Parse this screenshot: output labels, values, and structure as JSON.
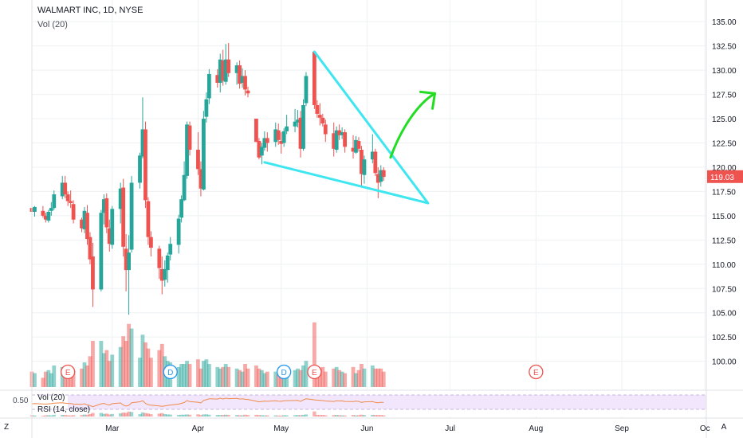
{
  "header": {
    "title": "WALMART INC, 1D, NYSE",
    "volume_label": "Vol (20)"
  },
  "indicator_panel": {
    "vol_label": "Vol (20)",
    "rsi_label": "RSI (14, close)",
    "level_label": "0.50"
  },
  "corner_buttons": {
    "left": "Z",
    "right": "A"
  },
  "price_badge": {
    "value": "119.03",
    "color": "#ef5350"
  },
  "colors": {
    "up": "#26a69a",
    "down": "#ef5350",
    "wedge": "#3ee6f0",
    "arrow": "#22dd22",
    "grid": "#eef0f3"
  },
  "chart_data": {
    "type": "candlestick",
    "title": "WALMART INC, 1D, NYSE",
    "y_ticks": [
      "135.00",
      "132.50",
      "130.00",
      "127.50",
      "125.00",
      "122.50",
      "120.00",
      "117.50",
      "115.00",
      "112.50",
      "110.00",
      "107.50",
      "105.00",
      "102.50",
      "100.00"
    ],
    "ylim": [
      98.0,
      136.0
    ],
    "x_ticks": [
      "Mar",
      "Apr",
      "May",
      "Jun",
      "Jul",
      "Aug",
      "Sep",
      "Oc"
    ],
    "x_tick_days": [
      29,
      60,
      90,
      121,
      151,
      182,
      213,
      243
    ],
    "xlim": [
      0,
      243.5
    ],
    "ohlc": [
      [
        0,
        115.8,
        116.0,
        115.0,
        115.4
      ],
      [
        1,
        115.4,
        116.0,
        114.9,
        115.9
      ],
      [
        4,
        115.5,
        116.0,
        114.8,
        115.0
      ],
      [
        5,
        115.0,
        115.3,
        114.3,
        114.6
      ],
      [
        6,
        114.5,
        115.6,
        114.3,
        115.4
      ],
      [
        7,
        115.5,
        116.4,
        115.0,
        115.8
      ],
      [
        8,
        115.8,
        117.6,
        115.6,
        117.2
      ],
      [
        11,
        117.0,
        119.1,
        116.7,
        118.4
      ],
      [
        12,
        118.4,
        119.1,
        116.8,
        117.2
      ],
      [
        13,
        117.2,
        117.5,
        116.0,
        116.5
      ],
      [
        14,
        116.5,
        117.6,
        115.8,
        116.3
      ],
      [
        15,
        116.2,
        116.6,
        114.2,
        114.6
      ],
      [
        18,
        114.6,
        114.8,
        113.3,
        113.7
      ],
      [
        19,
        113.6,
        115.9,
        113.2,
        115.5
      ],
      [
        20,
        115.3,
        116.1,
        112.0,
        112.6
      ],
      [
        21,
        112.8,
        113.3,
        110.0,
        110.5
      ],
      [
        22,
        110.8,
        112.2,
        105.6,
        107.4
      ],
      [
        25,
        107.4,
        115.6,
        107.2,
        115.3
      ],
      [
        26,
        115.3,
        117.2,
        114.1,
        116.7
      ],
      [
        27,
        116.8,
        117.3,
        113.2,
        113.8
      ],
      [
        28,
        113.7,
        114.6,
        111.3,
        112.1
      ],
      [
        29,
        112.0,
        116.0,
        111.6,
        115.7
      ],
      [
        32,
        115.7,
        118.4,
        114.2,
        117.8
      ],
      [
        33,
        117.9,
        118.8,
        110.8,
        111.8
      ],
      [
        34,
        111.6,
        113.1,
        107.2,
        109.4
      ],
      [
        35,
        109.4,
        113.0,
        104.8,
        111.2
      ],
      [
        36,
        111.5,
        119.1,
        111.2,
        118.4
      ],
      [
        39,
        118.4,
        121.5,
        117.8,
        121.2
      ],
      [
        40,
        121.1,
        127.2,
        120.9,
        123.9
      ],
      [
        41,
        123.9,
        124.7,
        115.8,
        116.6
      ],
      [
        42,
        116.5,
        116.9,
        112.0,
        112.8
      ],
      [
        43,
        112.8,
        113.4,
        110.8,
        111.7
      ],
      [
        46,
        111.6,
        111.9,
        108.5,
        109.6
      ],
      [
        47,
        109.5,
        110.8,
        106.9,
        108.3
      ],
      [
        48,
        108.4,
        110.4,
        107.7,
        109.5
      ],
      [
        49,
        109.4,
        111.2,
        108.1,
        110.9
      ],
      [
        50,
        111.0,
        112.8,
        110.4,
        112.1
      ],
      [
        53,
        112.0,
        115.1,
        111.1,
        114.7
      ],
      [
        54,
        114.8,
        117.1,
        114.3,
        116.7
      ],
      [
        55,
        116.6,
        120.6,
        116.5,
        119.2
      ],
      [
        56,
        119.1,
        124.7,
        118.8,
        124.4
      ],
      [
        57,
        124.3,
        124.7,
        121.2,
        121.8
      ],
      [
        60,
        121.8,
        123.6,
        119.2,
        119.8
      ],
      [
        61,
        119.8,
        120.6,
        117.0,
        117.8
      ],
      [
        62,
        117.7,
        125.8,
        117.6,
        125.0
      ],
      [
        63,
        125.2,
        127.7,
        124.6,
        127.0
      ],
      [
        64,
        127.1,
        130.1,
        126.5,
        129.6
      ],
      [
        67,
        129.5,
        130.1,
        128.2,
        128.7
      ],
      [
        68,
        128.7,
        131.7,
        127.7,
        131.1
      ],
      [
        69,
        131.0,
        132.1,
        128.4,
        128.9
      ],
      [
        70,
        128.8,
        132.7,
        128.5,
        131.1
      ],
      [
        71,
        131.1,
        132.8,
        129.3,
        129.7
      ],
      [
        74,
        129.7,
        130.8,
        128.5,
        130.5
      ],
      [
        75,
        130.5,
        131.0,
        128.1,
        128.6
      ],
      [
        76,
        128.7,
        130.2,
        128.2,
        129.4
      ],
      [
        77,
        129.4,
        130.0,
        127.4,
        128.0
      ],
      [
        78,
        127.9,
        128.3,
        127.2,
        127.6
      ],
      [
        81,
        125.0,
        125.0,
        122.6,
        122.6
      ],
      [
        82,
        122.7,
        123.0,
        120.8,
        121.0
      ],
      [
        83,
        121.2,
        122.5,
        120.3,
        122.1
      ],
      [
        84,
        122.0,
        123.7,
        121.7,
        123.0
      ],
      [
        85,
        123.0,
        123.6,
        121.6,
        122.5
      ],
      [
        88,
        122.6,
        124.6,
        122.1,
        123.9
      ],
      [
        89,
        123.8,
        124.5,
        122.3,
        122.8
      ],
      [
        90,
        122.7,
        123.6,
        121.4,
        122.4
      ],
      [
        91,
        122.5,
        124.0,
        122.1,
        123.7
      ],
      [
        92,
        123.7,
        125.4,
        123.4,
        124.2
      ],
      [
        95,
        124.2,
        126.0,
        123.6,
        124.7
      ],
      [
        96,
        124.6,
        125.9,
        124.1,
        124.9
      ],
      [
        97,
        125.1,
        125.8,
        121.0,
        121.9
      ],
      [
        98,
        121.9,
        127.0,
        121.7,
        126.4
      ],
      [
        99,
        126.6,
        129.8,
        126.3,
        129.4
      ],
      [
        102,
        131.9,
        132.0,
        126.0,
        126.4
      ],
      [
        103,
        126.4,
        126.9,
        125.1,
        125.5
      ],
      [
        104,
        125.4,
        126.6,
        124.3,
        125.1
      ],
      [
        105,
        125.1,
        125.5,
        124.2,
        124.5
      ],
      [
        106,
        124.4,
        124.9,
        122.6,
        123.4
      ],
      [
        109,
        123.5,
        124.6,
        121.1,
        121.9
      ],
      [
        110,
        121.8,
        124.2,
        121.5,
        123.8
      ],
      [
        111,
        123.8,
        124.4,
        122.8,
        123.3
      ],
      [
        112,
        123.3,
        124.1,
        122.9,
        123.6
      ],
      [
        113,
        123.6,
        123.9,
        121.5,
        122.1
      ],
      [
        116,
        122.0,
        123.3,
        120.9,
        121.6
      ],
      [
        117,
        121.5,
        123.2,
        121.4,
        122.8
      ],
      [
        118,
        122.7,
        123.1,
        121.6,
        121.9
      ],
      [
        119,
        121.8,
        122.2,
        118.1,
        119.3
      ],
      [
        120,
        119.2,
        121.2,
        118.3,
        120.8
      ],
      [
        123,
        120.8,
        123.4,
        120.4,
        121.6
      ],
      [
        124,
        121.6,
        121.9,
        119.1,
        119.4
      ],
      [
        125,
        119.3,
        120.0,
        116.8,
        118.4
      ],
      [
        126,
        118.5,
        120.2,
        118.0,
        119.7
      ],
      [
        127,
        119.7,
        120.0,
        118.6,
        119.0
      ]
    ],
    "volume": [
      [
        0,
        10,
        "d"
      ],
      [
        1,
        9,
        "u"
      ],
      [
        4,
        6,
        "d"
      ],
      [
        5,
        10,
        "d"
      ],
      [
        6,
        11,
        "u"
      ],
      [
        7,
        9,
        "u"
      ],
      [
        8,
        14,
        "u"
      ],
      [
        11,
        13,
        "u"
      ],
      [
        12,
        12,
        "d"
      ],
      [
        13,
        10,
        "d"
      ],
      [
        14,
        8,
        "d"
      ],
      [
        15,
        11,
        "d"
      ],
      [
        18,
        12,
        "d"
      ],
      [
        19,
        16,
        "u"
      ],
      [
        20,
        14,
        "d"
      ],
      [
        21,
        20,
        "d"
      ],
      [
        22,
        30,
        "d"
      ],
      [
        25,
        30,
        "u"
      ],
      [
        26,
        22,
        "u"
      ],
      [
        27,
        24,
        "d"
      ],
      [
        28,
        17,
        "d"
      ],
      [
        29,
        21,
        "u"
      ],
      [
        32,
        26,
        "u"
      ],
      [
        33,
        33,
        "d"
      ],
      [
        34,
        30,
        "d"
      ],
      [
        35,
        41,
        "d"
      ],
      [
        36,
        38,
        "u"
      ],
      [
        39,
        19,
        "u"
      ],
      [
        40,
        34,
        "u"
      ],
      [
        41,
        29,
        "d"
      ],
      [
        42,
        25,
        "d"
      ],
      [
        43,
        19,
        "d"
      ],
      [
        46,
        24,
        "d"
      ],
      [
        47,
        28,
        "d"
      ],
      [
        48,
        20,
        "u"
      ],
      [
        49,
        17,
        "u"
      ],
      [
        50,
        16,
        "u"
      ],
      [
        53,
        13,
        "u"
      ],
      [
        54,
        15,
        "u"
      ],
      [
        55,
        15,
        "u"
      ],
      [
        56,
        17,
        "u"
      ],
      [
        57,
        15,
        "d"
      ],
      [
        60,
        18,
        "d"
      ],
      [
        61,
        12,
        "d"
      ],
      [
        62,
        17,
        "u"
      ],
      [
        63,
        18,
        "u"
      ],
      [
        64,
        15,
        "u"
      ],
      [
        67,
        13,
        "u"
      ],
      [
        68,
        12,
        "u"
      ],
      [
        69,
        13,
        "d"
      ],
      [
        70,
        15,
        "u"
      ],
      [
        71,
        13,
        "d"
      ],
      [
        74,
        12,
        "u"
      ],
      [
        75,
        11,
        "d"
      ],
      [
        76,
        10,
        "u"
      ],
      [
        77,
        15,
        "d"
      ],
      [
        78,
        12,
        "d"
      ],
      [
        81,
        14,
        "d"
      ],
      [
        82,
        12,
        "d"
      ],
      [
        83,
        11,
        "u"
      ],
      [
        84,
        9,
        "u"
      ],
      [
        85,
        10,
        "d"
      ],
      [
        88,
        10,
        "u"
      ],
      [
        89,
        8,
        "d"
      ],
      [
        90,
        8,
        "d"
      ],
      [
        91,
        11,
        "u"
      ],
      [
        92,
        10,
        "u"
      ],
      [
        95,
        11,
        "u"
      ],
      [
        96,
        12,
        "u"
      ],
      [
        97,
        11,
        "d"
      ],
      [
        98,
        14,
        "u"
      ],
      [
        99,
        17,
        "u"
      ],
      [
        102,
        42,
        "d"
      ],
      [
        103,
        13,
        "d"
      ],
      [
        104,
        12,
        "d"
      ],
      [
        105,
        13,
        "d"
      ],
      [
        106,
        10,
        "d"
      ],
      [
        109,
        12,
        "d"
      ],
      [
        110,
        13,
        "u"
      ],
      [
        111,
        11,
        "d"
      ],
      [
        112,
        10,
        "u"
      ],
      [
        113,
        9,
        "d"
      ],
      [
        116,
        13,
        "d"
      ],
      [
        117,
        9,
        "u"
      ],
      [
        118,
        11,
        "d"
      ],
      [
        119,
        15,
        "d"
      ],
      [
        120,
        12,
        "u"
      ],
      [
        123,
        14,
        "u"
      ],
      [
        124,
        12,
        "d"
      ],
      [
        125,
        12,
        "d"
      ],
      [
        126,
        12,
        "d"
      ],
      [
        127,
        10,
        "d"
      ]
    ],
    "volume_max": 60,
    "events": [
      {
        "day": 13,
        "label": "E"
      },
      {
        "day": 50,
        "label": "D"
      },
      {
        "day": 91,
        "label": "D"
      },
      {
        "day": 102,
        "label": "E"
      },
      {
        "day": 182,
        "label": "E"
      }
    ],
    "annotations": {
      "wedge_upper": [
        [
          102,
          131.9
        ],
        [
          143,
          116.3
        ]
      ],
      "wedge_lower": [
        [
          84,
          120.5
        ],
        [
          143,
          116.3
        ]
      ],
      "arrow_points": [
        [
          129.5,
          121.0
        ],
        [
          133,
          123.8
        ],
        [
          139,
          126.5
        ],
        [
          145.5,
          127.6
        ]
      ]
    },
    "current_price": 119.03
  }
}
